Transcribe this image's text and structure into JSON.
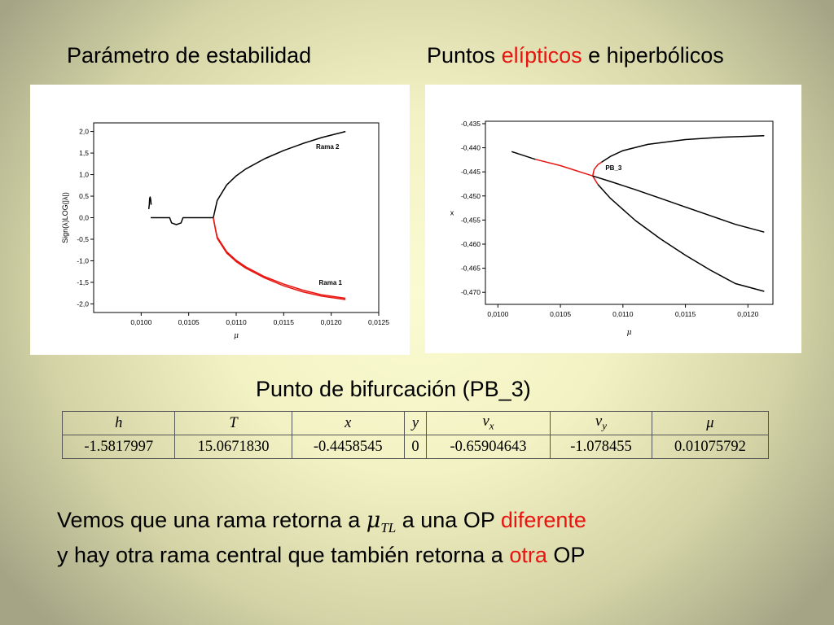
{
  "headings": {
    "left_title": "Parámetro de estabilidad",
    "right_title_prefix": "Puntos",
    "right_title_highlight": "elípticos",
    "right_title_suffix": "e hiperbólicos",
    "table_title": "Punto de bifurcación (PB_3)"
  },
  "chart_data": [
    {
      "type": "line",
      "xlabel": "μ",
      "ylabel": "Sign(λ)LOG(|λ|)",
      "xlim": [
        0.0095,
        0.0125
      ],
      "ylim": [
        -2.2,
        2.2
      ],
      "xticks": [
        "0,0100",
        "0,0105",
        "0,0110",
        "0,0115",
        "0,0120",
        "0,0125"
      ],
      "yticks": [
        "2,0",
        "1,5",
        "1,0",
        "0,5",
        "0,0",
        "-0,5",
        "-1,0",
        "-1,5",
        "-2,0"
      ],
      "annotations": [
        "Rama 2",
        "Rama 1"
      ],
      "colors": {
        "black": "#000000",
        "red": "#e8140f"
      },
      "series": [
        {
          "color": "#000000",
          "x": [
            0.0101,
            0.0103,
            0.01032,
            0.01037,
            0.01042,
            0.01044,
            0.0106,
            0.010759
          ],
          "y": [
            0.0,
            0.0,
            -0.12,
            -0.16,
            -0.12,
            0.0,
            0.0,
            0.0
          ]
        },
        {
          "color": "#000000",
          "x": [
            0.010759,
            0.01078,
            0.0108,
            0.0109,
            0.011,
            0.0111,
            0.0113,
            0.0115,
            0.0117,
            0.0119,
            0.01215
          ],
          "y": [
            0.0,
            0.2,
            0.4,
            0.76,
            0.97,
            1.13,
            1.37,
            1.56,
            1.72,
            1.86,
            2.0
          ]
        },
        {
          "color": "#e8140f",
          "x": [
            0.010759,
            0.01078,
            0.0108,
            0.0109,
            0.011,
            0.0111,
            0.0113,
            0.0115,
            0.0117,
            0.0119,
            0.01215
          ],
          "y": [
            0.0,
            -0.25,
            -0.48,
            -0.82,
            -1.02,
            -1.17,
            -1.4,
            -1.58,
            -1.72,
            -1.82,
            -1.9
          ]
        },
        {
          "color": "#e8140f",
          "x": [
            0.010759,
            0.01078,
            0.0108,
            0.0109,
            0.011,
            0.0111,
            0.0113,
            0.0115,
            0.0117,
            0.0119,
            0.01215
          ],
          "y": [
            0.0,
            -0.24,
            -0.45,
            -0.79,
            -0.99,
            -1.14,
            -1.37,
            -1.54,
            -1.68,
            -1.79,
            -1.87
          ]
        },
        {
          "color": "#000000",
          "x": [
            0.01008,
            0.010085,
            0.01009,
            0.010095,
            0.0101,
            0.010105
          ],
          "y": [
            0.2,
            0.3,
            0.45,
            0.48,
            0.42,
            0.3
          ]
        }
      ]
    },
    {
      "type": "line",
      "xlabel": "μ",
      "ylabel": "x",
      "xlim": [
        0.0099,
        0.0122
      ],
      "ylim": [
        -0.4725,
        -0.4345
      ],
      "xticks": [
        "0,0100",
        "0,0105",
        "0,0110",
        "0,0115",
        "0,0120"
      ],
      "yticks": [
        "-0,435",
        "-0,440",
        "-0,445",
        "-0,450",
        "-0,455",
        "-0,460",
        "-0,465",
        "-0,470"
      ],
      "annotations": [
        "PB_3"
      ],
      "colors": {
        "black": "#000000",
        "red": "#e8140f"
      },
      "series": [
        {
          "color": "#000000",
          "x": [
            0.01011,
            0.0103
          ],
          "y": [
            -0.4408,
            -0.4424
          ]
        },
        {
          "color": "#e8140f",
          "x": [
            0.0103,
            0.0105,
            0.01075792
          ],
          "y": [
            -0.4424,
            -0.4437,
            -0.4458545
          ]
        },
        {
          "color": "#e8140f",
          "x": [
            0.01075792,
            0.01077,
            0.0108,
            0.01083
          ],
          "y": [
            -0.4458545,
            -0.4445,
            -0.4435,
            -0.443
          ]
        },
        {
          "color": "#000000",
          "x": [
            0.01083,
            0.0109,
            0.011,
            0.0112,
            0.0115,
            0.0118,
            0.01213
          ],
          "y": [
            -0.443,
            -0.4418,
            -0.4406,
            -0.4393,
            -0.4383,
            -0.4378,
            -0.4375
          ]
        },
        {
          "color": "#e8140f",
          "x": [
            0.01075792,
            0.01078,
            0.0108
          ],
          "y": [
            -0.4458545,
            -0.4468,
            -0.4476
          ]
        },
        {
          "color": "#000000",
          "x": [
            0.0108,
            0.0109,
            0.0111,
            0.0113,
            0.0115,
            0.0117,
            0.0119,
            0.01213
          ],
          "y": [
            -0.4476,
            -0.4505,
            -0.4551,
            -0.4589,
            -0.4623,
            -0.4654,
            -0.4682,
            -0.4698
          ]
        },
        {
          "color": "#000000",
          "x": [
            0.01075792,
            0.0109,
            0.0111,
            0.0113,
            0.0115,
            0.0117,
            0.0119,
            0.01213
          ],
          "y": [
            -0.4458545,
            -0.447,
            -0.4487,
            -0.4505,
            -0.4523,
            -0.4541,
            -0.4559,
            -0.4575
          ]
        }
      ]
    }
  ],
  "table": {
    "headers": [
      {
        "base": "h",
        "sub": ""
      },
      {
        "base": "T",
        "sub": ""
      },
      {
        "base": "x",
        "sub": ""
      },
      {
        "base": "y",
        "sub": ""
      },
      {
        "base": "v",
        "sub": "x"
      },
      {
        "base": "v",
        "sub": "y"
      },
      {
        "base": "μ",
        "sub": ""
      }
    ],
    "values": [
      "-1.5817997",
      "15.0671830",
      "-0.4458545",
      "0",
      "-0.65904643",
      "-1.078455",
      "0.01075792"
    ]
  },
  "body": {
    "line1_part1": "Vemos que una rama retorna a",
    "line1_mu": "μ",
    "line1_sub": "TL",
    "line1_part2": "a una OP",
    "line1_highlight": "diferente",
    "line2_part1": "y hay otra rama central que también retorna a",
    "line2_highlight": "otra",
    "line2_part2": "OP"
  }
}
